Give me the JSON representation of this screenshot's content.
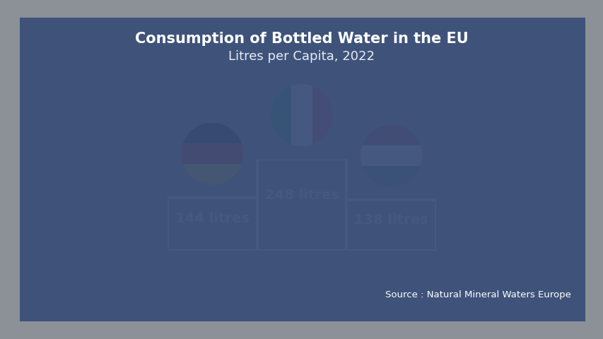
{
  "chart_data": {
    "type": "bar",
    "title": "Consumption of Bottled Water in the EU",
    "subtitle": "Litres per Capita, 2022",
    "source": "Source : Natural Mineral Waters Europe",
    "categories": [
      null,
      null,
      null
    ],
    "values": [
      144,
      248,
      138
    ],
    "value_labels": [
      "144 litres",
      "248 litres",
      "138 litres"
    ],
    "data_labels": true,
    "tick_labels": false,
    "color": "#ffffff",
    "ylim": [
      0,
      248
    ]
  }
}
